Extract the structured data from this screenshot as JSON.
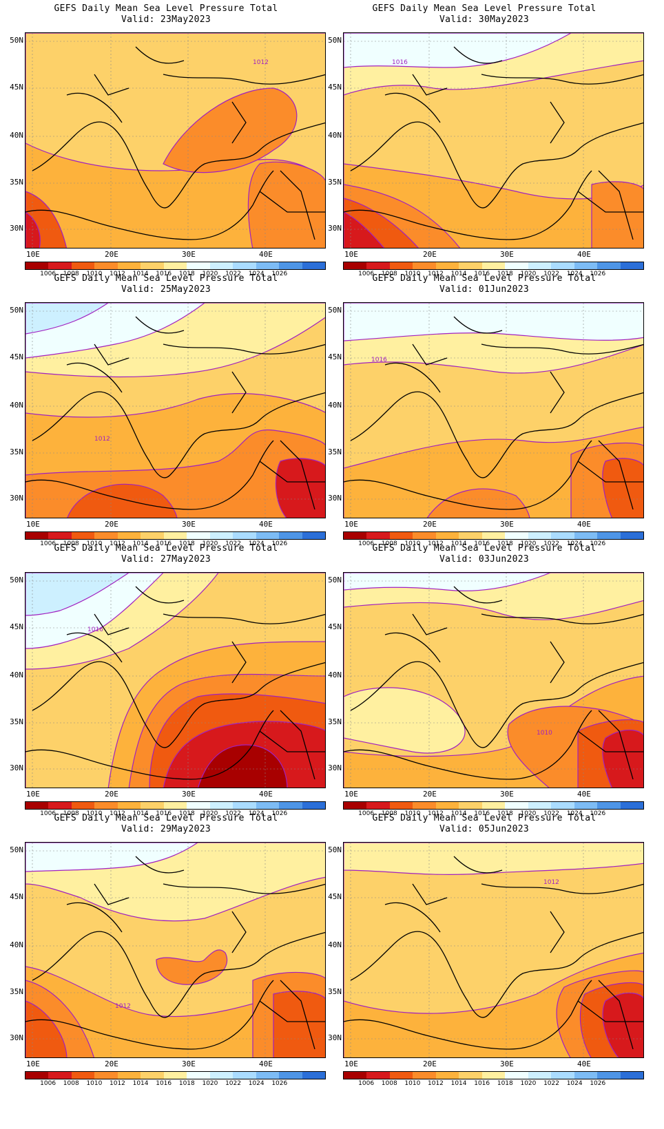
{
  "title_line": "GEFS Daily Mean Sea Level Pressure Total",
  "lat_labels": [
    "50N",
    "45N",
    "40N",
    "35N",
    "30N"
  ],
  "lon_labels": [
    "10E",
    "20E",
    "30E",
    "40E"
  ],
  "colorbar": {
    "colors": [
      "#a80000",
      "#d7191c",
      "#f05a10",
      "#fb8c2a",
      "#fdb23c",
      "#fdd169",
      "#fff0a0",
      "#f0ffff",
      "#cdf0ff",
      "#aadcff",
      "#7dbcf5",
      "#4e95e6",
      "#2b6fd8"
    ],
    "labels": [
      "1006",
      "1008",
      "1010",
      "1012",
      "1014",
      "1016",
      "1018",
      "1020",
      "1022",
      "1024",
      "1026"
    ]
  },
  "panels": [
    {
      "valid": "Valid: 23May2023",
      "contour_label": "1012"
    },
    {
      "valid": "Valid: 30May2023",
      "contour_label": "1016"
    },
    {
      "valid": "Valid: 25May2023",
      "contour_label": "1012"
    },
    {
      "valid": "Valid: 01Jun2023",
      "contour_label": "1016"
    },
    {
      "valid": "Valid: 27May2023",
      "contour_label": "1016"
    },
    {
      "valid": "Valid: 03Jun2023",
      "contour_label": "1010"
    },
    {
      "valid": "Valid: 29May2023",
      "contour_label": "1012"
    },
    {
      "valid": "Valid: 05Jun2023",
      "contour_label": "1012"
    }
  ]
}
